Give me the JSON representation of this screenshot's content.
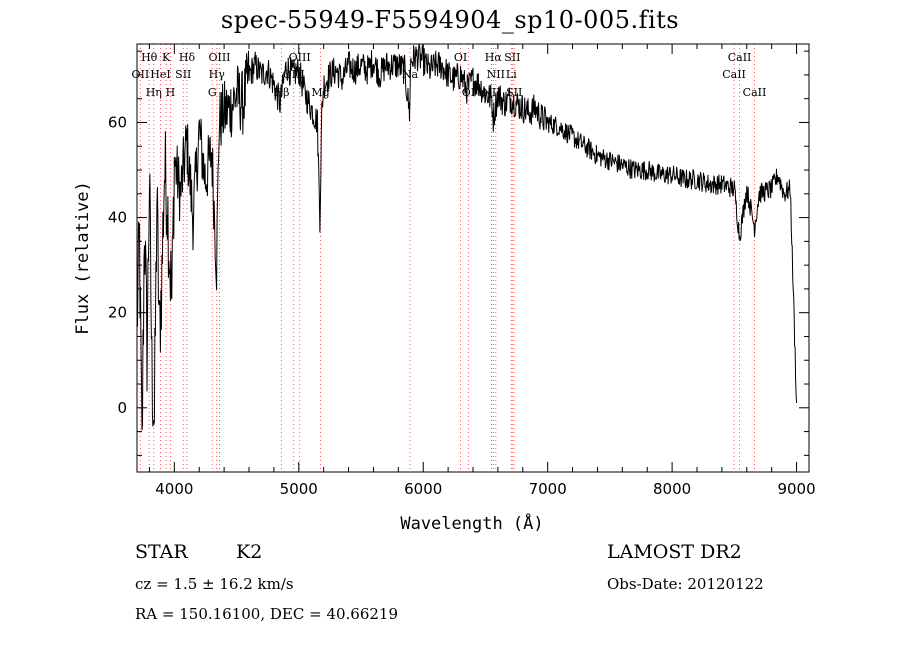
{
  "header": {
    "title": "spec-55949-F5594904_sp10-005.fits"
  },
  "info": {
    "class": "STAR",
    "subclass": "K2",
    "survey": "LAMOST DR2",
    "cz": "cz = 1.5 ± 16.2 km/s",
    "obs_date": "Obs-Date: 20120122",
    "coords": "RA = 150.16100, DEC =  40.66219"
  },
  "chart_data": {
    "type": "line",
    "title": "spec-55949-F5594904_sp10-005.fits",
    "xlabel": "Wavelength (Å)",
    "ylabel": "Flux (relative)",
    "xlim": [
      3700,
      9100
    ],
    "ylim": [
      -13.5,
      76.5
    ],
    "xticks": [
      4000,
      5000,
      6000,
      7000,
      8000,
      9000
    ],
    "yticks": [
      0,
      20,
      40,
      60
    ],
    "grid": false,
    "series": [
      {
        "x": [
          3700,
          3720,
          3740,
          3760,
          3780,
          3800,
          3820,
          3840,
          3860,
          3880,
          3900,
          3920,
          3940,
          3960,
          3980,
          4000,
          4050,
          4100,
          4150,
          4200,
          4250,
          4300,
          4340,
          4360,
          4400,
          4450,
          4500,
          4550,
          4600,
          4650,
          4700,
          4750,
          4800,
          4850,
          4900,
          4950,
          5000,
          5050,
          5100,
          5150,
          5170,
          5185,
          5200,
          5250,
          5300,
          5350,
          5400,
          5450,
          5500,
          5550,
          5600,
          5650,
          5700,
          5750,
          5800,
          5850,
          5890,
          5900,
          5950,
          6000,
          6050,
          6100,
          6150,
          6200,
          6250,
          6300,
          6350,
          6400,
          6450,
          6500,
          6550,
          6563,
          6600,
          6650,
          6700,
          6750,
          6800,
          6850,
          6900,
          6950,
          7000,
          7100,
          7200,
          7300,
          7400,
          7500,
          7600,
          7700,
          7800,
          7900,
          8000,
          8100,
          8200,
          8300,
          8400,
          8500,
          8542,
          8600,
          8662,
          8700,
          8800,
          8850,
          8900,
          8950,
          9000
        ],
        "y": [
          18,
          35,
          -10,
          40,
          12,
          48,
          8,
          -3,
          44,
          15,
          28,
          50,
          46,
          33,
          22,
          52,
          45,
          56,
          40,
          58,
          48,
          54,
          30,
          60,
          62,
          63,
          66,
          64,
          70,
          72,
          70,
          71,
          68,
          64,
          72,
          70,
          71,
          66,
          63,
          60,
          40,
          62,
          68,
          70,
          71,
          69,
          72,
          71,
          72,
          71,
          73,
          70,
          72,
          72,
          72,
          71,
          62,
          73,
          74,
          73,
          71,
          72,
          72,
          70,
          69,
          70,
          67,
          69,
          68,
          66,
          65,
          61,
          66,
          64,
          65,
          64,
          63,
          62,
          63,
          61,
          60,
          59,
          57,
          55,
          53,
          52,
          51,
          50,
          50,
          49,
          49,
          48,
          48,
          47,
          47,
          46,
          36,
          46,
          38,
          45,
          46,
          49,
          45,
          46,
          1
        ]
      }
    ],
    "lines": [
      {
        "name": "OII",
        "wave": 3727,
        "row": 2,
        "color": "#000000"
      },
      {
        "name": "Hθ",
        "wave": 3798,
        "row": 1,
        "color": "#000000"
      },
      {
        "name": "Hη",
        "wave": 3835,
        "row": 3,
        "color": "#000000"
      },
      {
        "name": "HeI",
        "wave": 3889,
        "row": 2,
        "color": "#000000"
      },
      {
        "name": "K",
        "wave": 3934,
        "row": 1,
        "color": "#000000"
      },
      {
        "name": "H",
        "wave": 3969,
        "row": 3,
        "color": "#000000"
      },
      {
        "name": "SII",
        "wave": 4072,
        "row": 2,
        "color": "#000000"
      },
      {
        "name": "Hδ",
        "wave": 4102,
        "row": 1,
        "color": "#000000"
      },
      {
        "name": "G",
        "wave": 4305,
        "row": 3,
        "color": "#000000"
      },
      {
        "name": "Hγ",
        "wave": 4341,
        "row": 2,
        "color": "#000000"
      },
      {
        "name": "OIII",
        "wave": 4363,
        "row": 1,
        "color": "#000000"
      },
      {
        "name": "Hβ",
        "wave": 4861,
        "row": 3,
        "color": "#000000"
      },
      {
        "name": "OIII",
        "wave": 4959,
        "row": 2,
        "color": "#000000"
      },
      {
        "name": "OIII",
        "wave": 5007,
        "row": 1,
        "color": "#000000"
      },
      {
        "name": "Mg",
        "wave": 5175,
        "row": 3,
        "color": "#000000"
      },
      {
        "name": "Na",
        "wave": 5893,
        "row": 2,
        "color": "#000000"
      },
      {
        "name": "OI",
        "wave": 6300,
        "row": 1,
        "color": "#000000"
      },
      {
        "name": "OI",
        "wave": 6363,
        "row": 3,
        "color": "#000000"
      },
      {
        "name": "NII",
        "wave": 6548,
        "row": 3,
        "color": "#000000"
      },
      {
        "name": "Hα",
        "wave": 6563,
        "row": 1,
        "color": "#000000"
      },
      {
        "name": "NII",
        "wave": 6583,
        "row": 2,
        "color": "#000000"
      },
      {
        "name": "Li",
        "wave": 6708,
        "row": 2,
        "color": "#000000"
      },
      {
        "name": "SII",
        "wave": 6716,
        "row": 1,
        "color": "#000000"
      },
      {
        "name": "SII",
        "wave": 6731,
        "row": 3,
        "color": "#000000"
      },
      {
        "name": "CaII",
        "wave": 8498,
        "row": 2,
        "color": "#000000"
      },
      {
        "name": "CaII",
        "wave": 8542,
        "row": 1,
        "color": "#000000"
      },
      {
        "name": "CaII",
        "wave": 8662,
        "row": 3,
        "color": "#000000"
      }
    ],
    "line_marker_color": "#e06060",
    "spectrum_color": "#000000"
  }
}
